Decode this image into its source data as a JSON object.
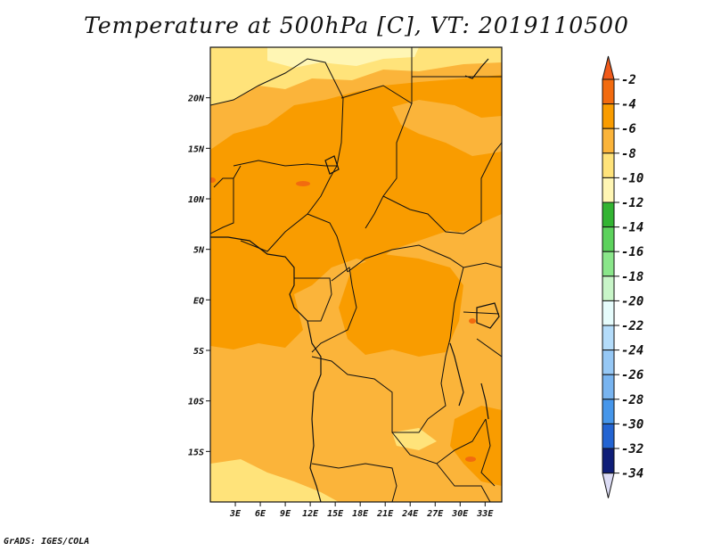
{
  "title": "Temperature at 500hPa [C], VT: 2019110500",
  "credit": "GrADS: IGES/COLA",
  "map": {
    "lon_range": [
      0,
      35
    ],
    "lat_range": [
      -20,
      25
    ],
    "lat_ticks": [
      {
        "value": 20,
        "label": "20N"
      },
      {
        "value": 15,
        "label": "15N"
      },
      {
        "value": 10,
        "label": "10N"
      },
      {
        "value": 5,
        "label": "5N"
      },
      {
        "value": 0,
        "label": "EQ"
      },
      {
        "value": -5,
        "label": "5S"
      },
      {
        "value": -10,
        "label": "10S"
      },
      {
        "value": -15,
        "label": "15S"
      }
    ],
    "lon_ticks": [
      {
        "value": 3,
        "label": "3E"
      },
      {
        "value": 6,
        "label": "6E"
      },
      {
        "value": 9,
        "label": "9E"
      },
      {
        "value": 12,
        "label": "12E"
      },
      {
        "value": 15,
        "label": "15E"
      },
      {
        "value": 18,
        "label": "18E"
      },
      {
        "value": 21,
        "label": "21E"
      },
      {
        "value": 24,
        "label": "24E"
      },
      {
        "value": 27,
        "label": "27E"
      },
      {
        "value": 30,
        "label": "30E"
      },
      {
        "value": 33,
        "label": "33E"
      }
    ]
  },
  "colorbar": {
    "labels": [
      "-2",
      "-4",
      "-6",
      "-8",
      "-10",
      "-12",
      "-14",
      "-16",
      "-18",
      "-20",
      "-22",
      "-24",
      "-26",
      "-28",
      "-30",
      "-32",
      "-34"
    ],
    "top_arrow_color": "#f05a1a",
    "bottom_arrow_color": "#dcdcf5",
    "colors": [
      "#f26b0f",
      "#f99c00",
      "#fbb43a",
      "#ffe37a",
      "#fff6b4",
      "#32b432",
      "#5cd25c",
      "#8ae68a",
      "#c8f5c8",
      "#e6fcfc",
      "#b4dcfa",
      "#96c8f5",
      "#78b4f0",
      "#4696ea",
      "#2364d2",
      "#1446b4",
      "#0f1e78"
    ]
  },
  "legend_colors": {
    "level_m4_m2": "#f26b0f",
    "level_m6_m4": "#f99c00",
    "level_m8_m6": "#fbb43a",
    "level_m10_m8": "#ffe37a",
    "level_m12_m10": "#fff6b4"
  }
}
